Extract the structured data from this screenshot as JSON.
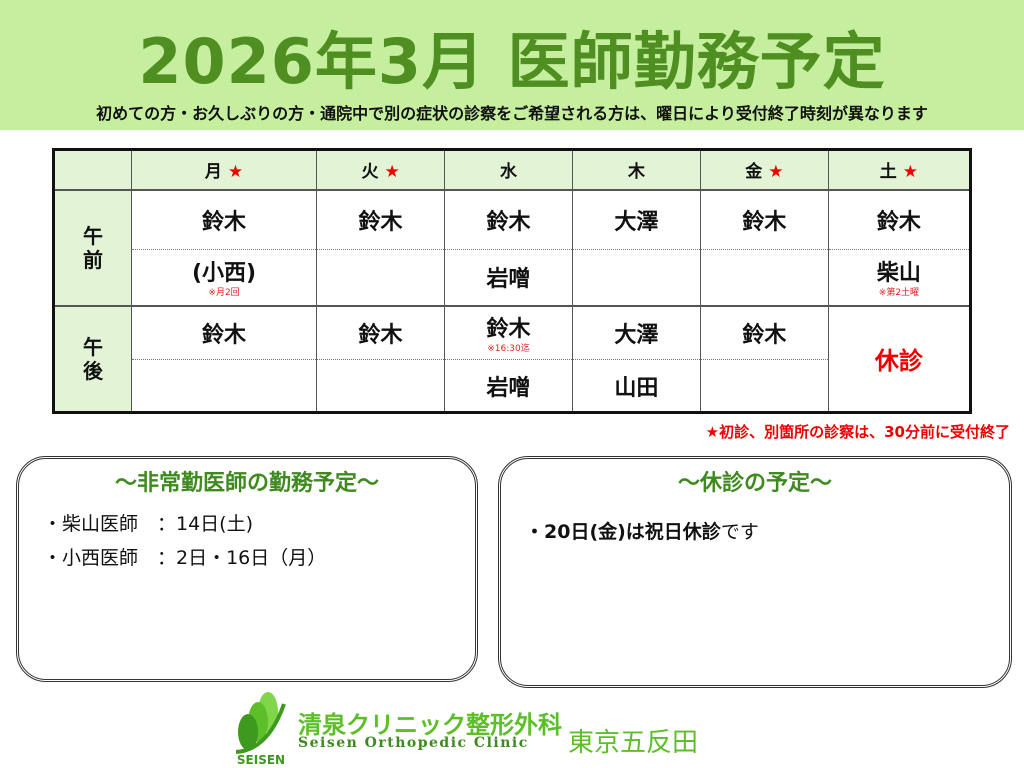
{
  "title": "2026年3月 医師勤務予定",
  "subtitle": "初めての方・お久しぶりの方・通院中で別の症状の診察をご希望される方は、曜日により受付終了時刻が異なります",
  "days": [
    {
      "label": "月",
      "star": "★"
    },
    {
      "label": "火",
      "star": "★"
    },
    {
      "label": "水",
      "star": ""
    },
    {
      "label": "木",
      "star": ""
    },
    {
      "label": "金",
      "star": "★"
    },
    {
      "label": "土",
      "star": "★"
    }
  ],
  "am_label": "午前",
  "pm_label": "午後",
  "am1": [
    "鈴木",
    "鈴木",
    "鈴木",
    "大澤",
    "鈴木",
    "鈴木"
  ],
  "am2": [
    {
      "name": "(小西)",
      "note": "※月2回"
    },
    {
      "name": "",
      "note": ""
    },
    {
      "name": "岩噌",
      "note": ""
    },
    {
      "name": "",
      "note": ""
    },
    {
      "name": "",
      "note": ""
    },
    {
      "name": "柴山",
      "note": "※第2土曜"
    }
  ],
  "pm1": [
    {
      "name": "鈴木",
      "note": ""
    },
    {
      "name": "鈴木",
      "note": ""
    },
    {
      "name": "鈴木",
      "note": "※16:30迄"
    },
    {
      "name": "大澤",
      "note": ""
    },
    {
      "name": "鈴木",
      "note": ""
    }
  ],
  "pm2": [
    "",
    "",
    "岩噌",
    "山田",
    ""
  ],
  "sat_pm": "休診",
  "footnote": "★初診、別箇所の診察は、30分前に受付終了",
  "parttime": {
    "title": "～非常勤医師の勤務予定～",
    "items": [
      "・柴山医師　：14日(土)",
      "・小西医師　：2日・16日（月）"
    ]
  },
  "closed": {
    "title": "～休診の予定～",
    "bold": "・20日(金)は祝日休診",
    "rest": "です"
  },
  "clinic": {
    "name_jp": "清泉クリニック整形外科",
    "name_en": "Seisen Orthopedic Clinic",
    "location": "東京五反田",
    "logo_text": "SEISEN"
  },
  "colors": {
    "banner": "#c5ee9f",
    "title": "#4f8f22",
    "accent_red": "#e00000",
    "header_cell": "#e3f3d6"
  }
}
